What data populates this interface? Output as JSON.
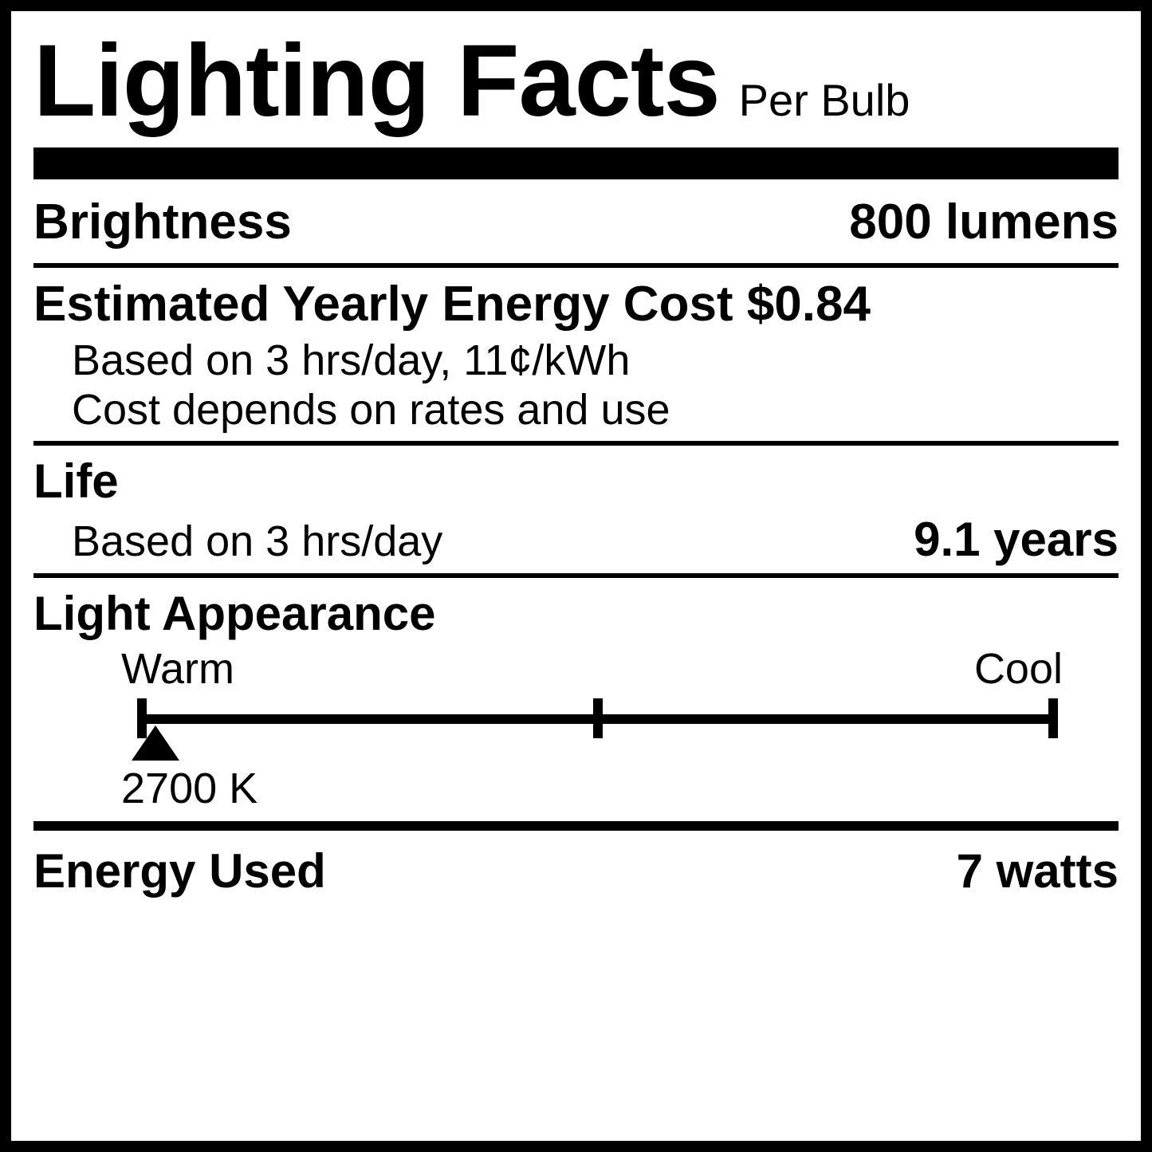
{
  "label": {
    "title_main": "Lighting Facts",
    "title_sub": "Per Bulb",
    "brightness": {
      "label": "Brightness",
      "value": "800 lumens"
    },
    "cost": {
      "header": "Estimated Yearly Energy Cost $0.84",
      "line1": "Based on 3 hrs/day, 11¢/kWh",
      "line2": "Cost depends on rates and use"
    },
    "life": {
      "header": "Life",
      "detail": "Based on 3 hrs/day",
      "value": "9.1 years"
    },
    "appearance": {
      "header": "Light Appearance",
      "warm_label": "Warm",
      "cool_label": "Cool",
      "kelvin_label": "2700 K",
      "pointer_percent": 2
    },
    "energy": {
      "label": "Energy Used",
      "value": "7 watts"
    },
    "colors": {
      "border": "#000000",
      "background": "#ffffff",
      "text": "#000000"
    }
  }
}
